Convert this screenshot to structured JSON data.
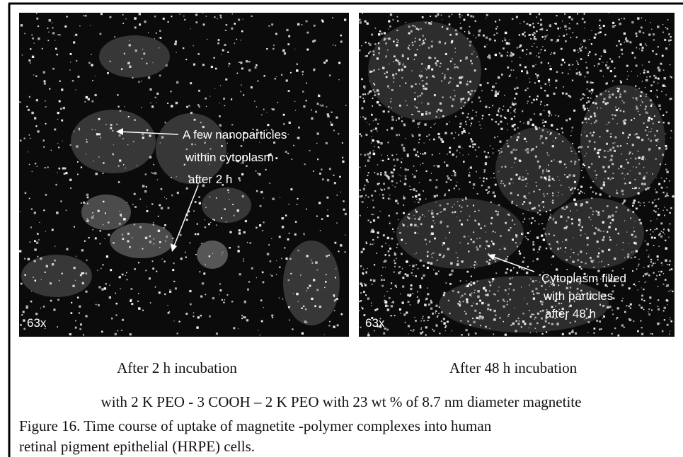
{
  "figure": {
    "panels": [
      {
        "annotation": [
          "A few nanoparticles",
          "within cytoplasm",
          "after 2 h"
        ],
        "magnification": "63x",
        "label": "After 2 h incubation"
      },
      {
        "annotation": [
          "Cytoplasm filled",
          "with particles",
          "after 48 h"
        ],
        "magnification": "63x",
        "label": "After 48 h incubation"
      }
    ],
    "subtitle": "with 2 K PEO - 3 COOH – 2 K PEO with 23 wt % of 8.7 nm diameter magnetite",
    "caption": [
      "Figure 16.  Time course of uptake of magnetite -polymer complexes into human",
      "retinal pigment epithelial (HRPE) cells."
    ]
  }
}
